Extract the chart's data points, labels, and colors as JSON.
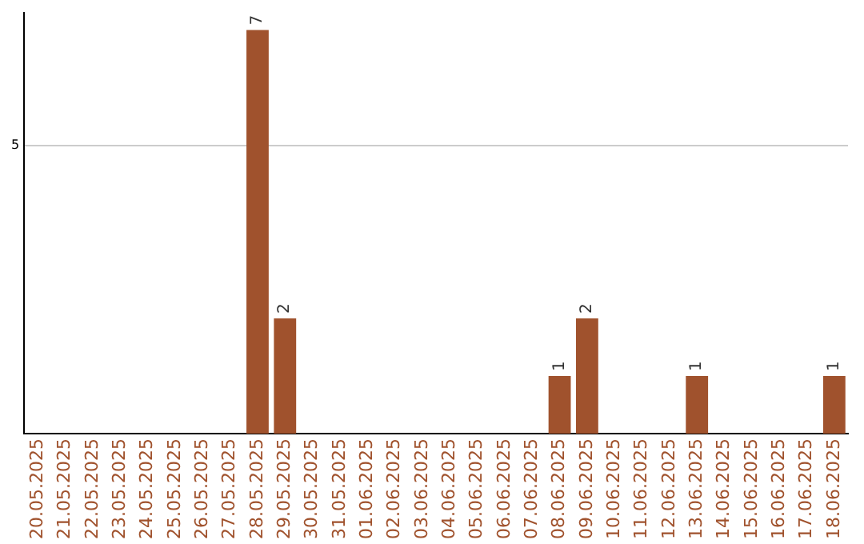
{
  "chart_data": {
    "type": "bar",
    "categories": [
      "20.05.2025",
      "21.05.2025",
      "22.05.2025",
      "23.05.2025",
      "24.05.2025",
      "25.05.2025",
      "26.05.2025",
      "27.05.2025",
      "28.05.2025",
      "29.05.2025",
      "30.05.2025",
      "31.05.2025",
      "01.06.2025",
      "02.06.2025",
      "03.06.2025",
      "04.06.2025",
      "05.06.2025",
      "06.06.2025",
      "07.06.2025",
      "08.06.2025",
      "09.06.2025",
      "10.06.2025",
      "11.06.2025",
      "12.06.2025",
      "13.06.2025",
      "14.06.2025",
      "15.06.2025",
      "16.06.2025",
      "17.06.2025",
      "18.06.2025"
    ],
    "values": [
      0,
      0,
      0,
      0,
      0,
      0,
      0,
      0,
      7,
      2,
      0,
      0,
      0,
      0,
      0,
      0,
      0,
      0,
      0,
      1,
      2,
      0,
      0,
      0,
      1,
      0,
      0,
      0,
      0,
      1
    ],
    "color": "#a0522d",
    "ylim": [
      0,
      7.3
    ],
    "yticks": [
      5
    ],
    "grid": "y",
    "value_labels": [
      null,
      null,
      null,
      null,
      null,
      null,
      null,
      null,
      "7",
      "2",
      null,
      null,
      null,
      null,
      null,
      null,
      null,
      null,
      null,
      "1",
      "2",
      null,
      null,
      null,
      "1",
      null,
      null,
      null,
      null,
      "1"
    ],
    "legend": false
  }
}
